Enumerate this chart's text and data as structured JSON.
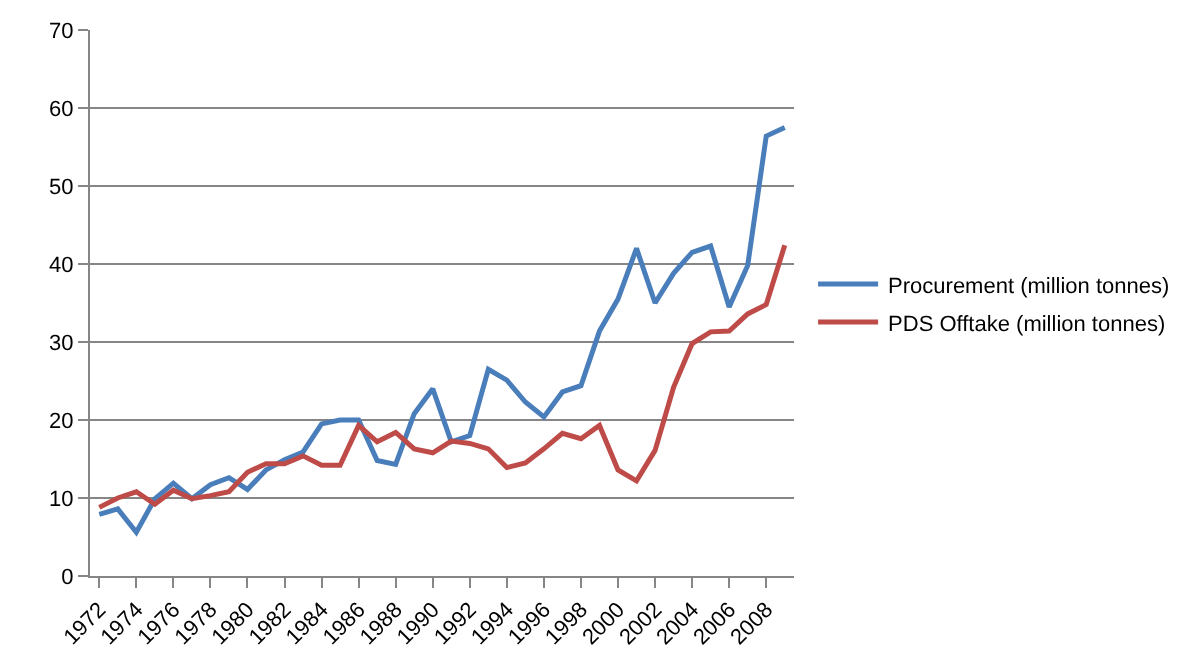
{
  "chart_data": {
    "type": "line",
    "categories": [
      "1972",
      null,
      "1974",
      null,
      "1976",
      null,
      "1978",
      null,
      "1980",
      null,
      "1982",
      null,
      "1984",
      null,
      "1986",
      null,
      "1988",
      null,
      "1990",
      null,
      "1992",
      null,
      "1994",
      null,
      "1996",
      null,
      "1998",
      null,
      "2000",
      null,
      "2002",
      null,
      "2004",
      null,
      "2006",
      null,
      "2008",
      null
    ],
    "series": [
      {
        "name": "Procurement (million tonnes)",
        "color": "#4a7ebb",
        "values": [
          7.9,
          8.6,
          5.6,
          9.9,
          11.9,
          9.9,
          11.7,
          12.6,
          11.1,
          13.6,
          14.9,
          15.9,
          19.5,
          20,
          20,
          14.8,
          14.3,
          20.8,
          24,
          17.2,
          18,
          26.5,
          25.1,
          22.3,
          20.4,
          23.6,
          24.4,
          31.4,
          35.5,
          42,
          35,
          38.8,
          41.5,
          42.3,
          34.5,
          39.8,
          56.4,
          57.5
        ]
      },
      {
        "name": "PDS Offtake (million tonnes)",
        "color": "#be4b48",
        "values": [
          8.8,
          10,
          10.8,
          9.2,
          11,
          9.9,
          10.3,
          10.8,
          13.3,
          14.4,
          14.4,
          15.4,
          14.2,
          14.2,
          19.3,
          17.2,
          18.4,
          16.3,
          15.8,
          17.3,
          17,
          16.3,
          13.9,
          14.5,
          16.3,
          18.3,
          17.6,
          19.3,
          13.6,
          12.2,
          16.1,
          24.2,
          29.8,
          31.3,
          31.4,
          33.6,
          34.8,
          42.4
        ]
      }
    ],
    "ylim": [
      0,
      70
    ],
    "yticks": [
      0,
      10,
      20,
      30,
      40,
      50,
      60,
      70
    ],
    "grid": "y",
    "legend": "right",
    "marker": "none",
    "line_style": "solid"
  }
}
